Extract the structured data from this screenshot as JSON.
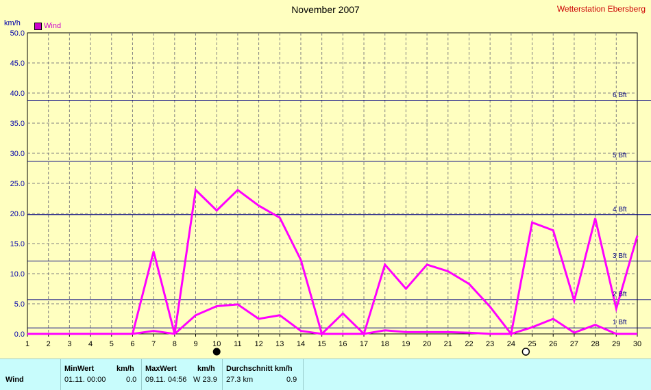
{
  "header": {
    "title": "November 2007",
    "station": "Wetterstation Ebersberg",
    "unit": "km/h"
  },
  "legend": {
    "label": "Wind",
    "color": "#ff00ff"
  },
  "beaufort": [
    {
      "label": "1 Bft",
      "value": 1.0
    },
    {
      "label": "2 Bft",
      "value": 5.7
    },
    {
      "label": "3 Bft",
      "value": 12.1
    },
    {
      "label": "4 Bft",
      "value": 19.8
    },
    {
      "label": "5 Bft",
      "value": 28.7
    },
    {
      "label": "6 Bft",
      "value": 38.8
    }
  ],
  "moon": {
    "full_day": 10,
    "new_day": 24.7
  },
  "stats": {
    "row_label": "Wind",
    "min_header": "MinWert",
    "min_unit": "km/h",
    "min_time": "01.11.  00:00",
    "min_value": "0.0",
    "max_header": "MaxWert",
    "max_unit": "km/h",
    "max_time": "09.11.  04:56",
    "max_value": "W 23.9",
    "avg_header": "Durchschnitt km/h",
    "avg_dist": "27.3 km",
    "avg_value": "0.9"
  },
  "chart_data": {
    "type": "line",
    "title": "November 2007",
    "ylabel": "km/h",
    "xlim": [
      1,
      30
    ],
    "ylim": [
      0,
      50
    ],
    "yticks": [
      "0.0",
      "5.0",
      "10.0",
      "15.0",
      "20.0",
      "25.0",
      "30.0",
      "35.0",
      "40.0",
      "45.0",
      "50.0"
    ],
    "x": [
      1,
      2,
      3,
      4,
      5,
      6,
      7,
      8,
      9,
      10,
      11,
      12,
      13,
      14,
      15,
      16,
      17,
      18,
      19,
      20,
      21,
      22,
      23,
      24,
      25,
      26,
      27,
      28,
      29,
      30
    ],
    "series": [
      {
        "name": "Wind",
        "role": "max",
        "values": [
          0,
          0,
          0,
          0,
          0,
          0,
          13.7,
          0,
          23.9,
          20.5,
          23.9,
          21.3,
          19.3,
          12.3,
          0,
          3.4,
          0,
          11.5,
          7.5,
          11.5,
          10.4,
          8.3,
          4.5,
          0,
          18.5,
          17.2,
          5.5,
          19.2,
          4.2,
          16.3
        ]
      },
      {
        "name": "Wind",
        "role": "avg",
        "values": [
          0,
          0,
          0,
          0,
          0,
          0,
          0.5,
          0,
          3.1,
          4.6,
          4.9,
          2.5,
          3.1,
          0.5,
          0,
          0,
          0,
          0.6,
          0.3,
          0.3,
          0.3,
          0.2,
          0,
          0,
          1.1,
          2.5,
          0.2,
          1.5,
          0,
          0
        ]
      }
    ],
    "grid": true,
    "legend_position": "top-left"
  }
}
